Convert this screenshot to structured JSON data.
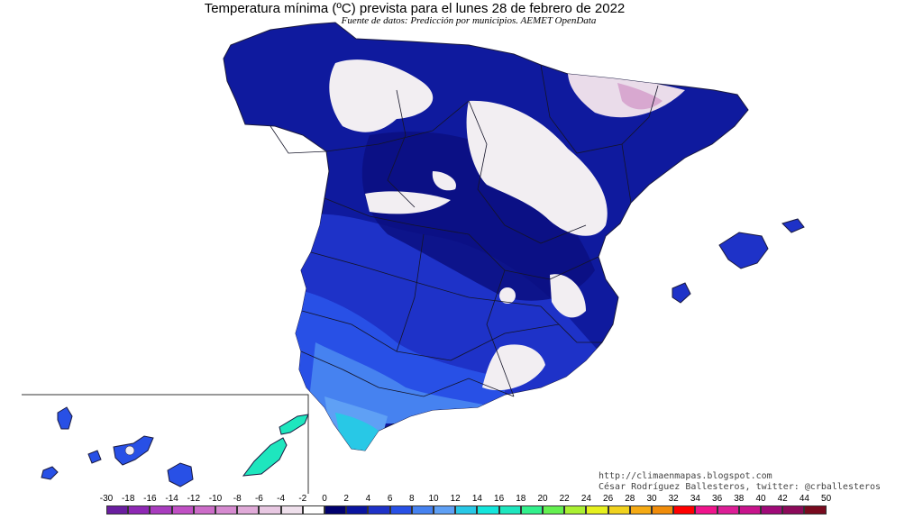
{
  "title": "Temperatura mínima (ºC) prevista para el lunes 28 de febrero de 2022",
  "subtitle": "Fuente de datos: Predicción por municipios. AEMET OpenData",
  "credits": {
    "blog": "http://climaenmapas.blogspot.com",
    "author": "César Rodríguez Ballesteros, twitter: @crballesteros"
  },
  "legend": {
    "labels": [
      "-30",
      "-18",
      "-16",
      "-14",
      "-12",
      "-10",
      "-8",
      "-6",
      "-4",
      "-2",
      "0",
      "2",
      "4",
      "6",
      "8",
      "10",
      "12",
      "14",
      "16",
      "18",
      "20",
      "22",
      "24",
      "26",
      "28",
      "30",
      "32",
      "34",
      "36",
      "38",
      "40",
      "42",
      "44",
      "50"
    ],
    "colors": [
      "#6a1ea0",
      "#8e28b4",
      "#a83cbe",
      "#c050c4",
      "#cc6cc8",
      "#d68ad0",
      "#e0aad8",
      "#e8c8e2",
      "#efe0ec",
      "#ffffff",
      "#00006e",
      "#0a14a0",
      "#1e32c8",
      "#2850e6",
      "#4682f0",
      "#5fa0f5",
      "#28c8e6",
      "#14e6dc",
      "#1ee6be",
      "#32f08c",
      "#64f050",
      "#aaf032",
      "#e6f01e",
      "#f0d21e",
      "#f5aa14",
      "#f08c0a",
      "#ff0000",
      "#f0148c",
      "#dc1e96",
      "#c8148c",
      "#a00a78",
      "#8c0a5a",
      "#780a1e"
    ]
  },
  "map": {
    "regions": {
      "peninsula": "Península Ibérica",
      "balearic": "Islas Baleares",
      "canary": "Islas Canarias"
    }
  }
}
